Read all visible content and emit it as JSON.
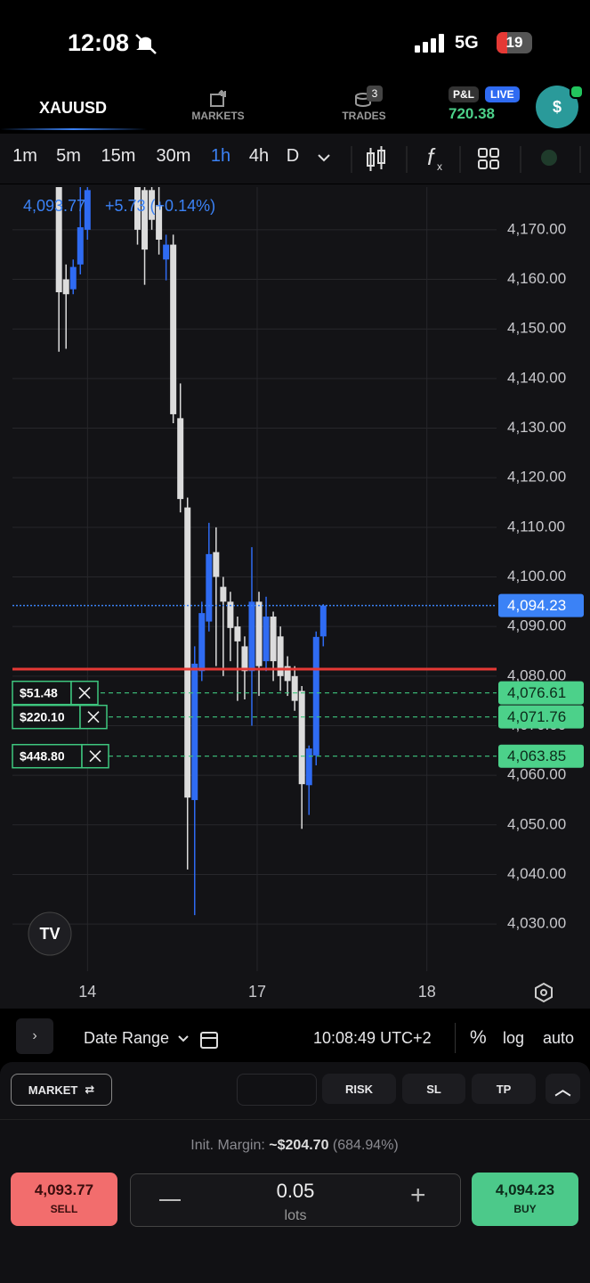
{
  "status_bar": {
    "time": "12:08",
    "network": "5G",
    "battery": "19"
  },
  "nav": {
    "symbol": "XAUUSD",
    "markets": "MARKETS",
    "trades": "TRADES",
    "trades_badge": "3",
    "pnl_tag": "P&L",
    "live_tag": "LIVE",
    "pnl": "720.38",
    "avatar": "$"
  },
  "timeframes": [
    "1m",
    "5m",
    "15m",
    "30m",
    "1h",
    "4h",
    "D"
  ],
  "active_timeframe": "1h",
  "chart_data": {
    "type": "candlestick",
    "price": "4,093.77",
    "change": "+5.73 (+0.14%)",
    "x": [
      0,
      1,
      2,
      3,
      4,
      11,
      12,
      13,
      14,
      15,
      16,
      17,
      18,
      19,
      20,
      21,
      22,
      23,
      24,
      25,
      26,
      27,
      28,
      29,
      30,
      31,
      32,
      33,
      34,
      35,
      36,
      37
    ],
    "open": [
      4180,
      4160,
      4158,
      4163,
      4170,
      4180,
      4178,
      4178,
      4175,
      4164,
      4167,
      4132,
      4114,
      4055,
      4081,
      4091,
      4105,
      4098,
      4095,
      4090,
      4086,
      4081,
      4095,
      4083,
      4092,
      4088,
      4082,
      4080,
      4077,
      4058,
      4064,
      4088
    ],
    "high": [
      4185,
      4163,
      4164,
      4182,
      4184,
      4184,
      4181,
      4182,
      4180,
      4169,
      4169,
      4139,
      4116,
      4086,
      4095,
      4110.9,
      4110,
      4100,
      4097,
      4092,
      4088,
      4106,
      4097,
      4096,
      4093,
      4090,
      4084,
      4082,
      4078,
      4066,
      4089,
      4094.5
    ],
    "low": [
      4145.4,
      4146,
      4157,
      4161,
      4168,
      4167,
      4158.9,
      4170,
      4165,
      4159.8,
      4131,
      4113,
      4041,
      4031.8,
      4079,
      4089,
      4082,
      4080,
      4083,
      4075,
      4075.3,
      4070,
      4076,
      4081,
      4079,
      4077,
      4076,
      4073,
      4049.2,
      4052,
      4062,
      4086
    ],
    "close": [
      4157.4,
      4157,
      4162.5,
      4170.5,
      4178,
      4170,
      4166,
      4172,
      4168,
      4167,
      4132.8,
      4115.7,
      4055.5,
      4082.5,
      4092.7,
      4104.6,
      4100,
      4095,
      4089.7,
      4087,
      4081,
      4095,
      4082,
      4092,
      4083,
      4080,
      4079,
      4075,
      4058.2,
      4065.4,
      4087.9,
      4094.23
    ],
    "up_color": "#2f6bf2",
    "down_color": "#dcdcdc",
    "xlim": [
      -6.5,
      61.25
    ],
    "xticks": [
      {
        "value": 4,
        "label": "14"
      },
      {
        "value": 27.75,
        "label": "17"
      },
      {
        "value": 51.5,
        "label": "18"
      }
    ],
    "ylim": [
      4020.5,
      4178.6
    ],
    "yticks": [
      {
        "value": 4030,
        "label": "4,030.00"
      },
      {
        "value": 4040,
        "label": "4,040.00"
      },
      {
        "value": 4050,
        "label": "4,050.00"
      },
      {
        "value": 4060,
        "label": "4,060.00"
      },
      {
        "value": 4070,
        "label": "4,070.00"
      },
      {
        "value": 4080,
        "label": "4,080.00"
      },
      {
        "value": 4090,
        "label": "4,090.00"
      },
      {
        "value": 4100,
        "label": "4,100.00"
      },
      {
        "value": 4110,
        "label": "4,110.00"
      },
      {
        "value": 4120,
        "label": "4,120.00"
      },
      {
        "value": 4130,
        "label": "4,130.00"
      },
      {
        "value": 4140,
        "label": "4,140.00"
      },
      {
        "value": 4150,
        "label": "4,150.00"
      },
      {
        "value": 4160,
        "label": "4,160.00"
      },
      {
        "value": 4170,
        "label": "4,170.00"
      }
    ],
    "grid": true,
    "price_line": {
      "value": 4094.23,
      "label": "4,094.23",
      "color": "#3b82f6"
    },
    "position_line": {
      "value": 4081.4,
      "color": "#e53935"
    },
    "orders": [
      {
        "value": 4076.61,
        "label": "4,076.61",
        "pnl": "$51.48"
      },
      {
        "value": 4071.76,
        "label": "4,071.76",
        "pnl": "$220.10"
      },
      {
        "value": 4063.85,
        "label": "4,063.85",
        "pnl": "$448.80"
      }
    ]
  },
  "toolbar": {
    "date_range": "Date Range",
    "clock": "10:08:49 UTC+2",
    "percent": "%",
    "log": "log",
    "auto": "auto"
  },
  "order_bar": {
    "market": "MARKET",
    "risk": "RISK",
    "sl": "SL",
    "tp": "TP"
  },
  "margin": {
    "label": "Init. Margin:",
    "value": "~$204.70",
    "pct": "(684.94%)"
  },
  "trade": {
    "sell_price": "4,093.77",
    "sell": "SELL",
    "lots": "0.05",
    "lots_label": "lots",
    "buy_price": "4,094.23",
    "buy": "BUY"
  }
}
